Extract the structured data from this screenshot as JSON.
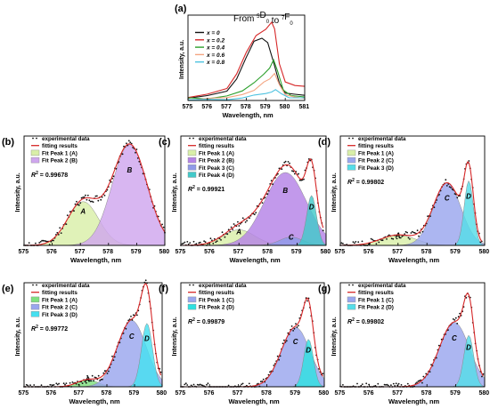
{
  "chart_data": [
    {
      "panel": "(a)",
      "type": "line",
      "title_main": "From ",
      "title_sup1": "5",
      "title_mid": "D",
      "title_sub1": "0",
      "title_to": " to ",
      "title_sup2": "7",
      "title_end": "F",
      "title_sub2": "0",
      "xlabel": "Wavelength, nm",
      "ylabel": "Intensity, a.u.",
      "xlim": [
        575,
        581
      ],
      "xticks": [
        "575",
        "576",
        "577",
        "578",
        "579",
        "580",
        "581"
      ],
      "legend": [
        {
          "name": "x = 0",
          "color": "#111111"
        },
        {
          "name": "x = 0.2",
          "color": "#d62728"
        },
        {
          "name": "x = 0.4",
          "color": "#2ca02c"
        },
        {
          "name": "x = 0.6",
          "color": "#f4a582"
        },
        {
          "name": "x = 0.8",
          "color": "#4fc3e0"
        }
      ],
      "series": [
        {
          "name": "x = 0",
          "x": [
            575,
            576,
            577,
            577.5,
            578,
            578.4,
            578.8,
            579.1,
            579.4,
            579.7,
            580,
            580.5,
            581
          ],
          "y": [
            0.03,
            0.06,
            0.13,
            0.28,
            0.55,
            0.75,
            0.8,
            0.72,
            0.48,
            0.22,
            0.1,
            0.07,
            0.06
          ]
        },
        {
          "name": "x = 0.2",
          "x": [
            575,
            576,
            577,
            577.5,
            578,
            578.5,
            579,
            579.3,
            579.45,
            579.7,
            580,
            580.5,
            581
          ],
          "y": [
            0.05,
            0.08,
            0.16,
            0.33,
            0.62,
            0.82,
            0.9,
            1.0,
            0.92,
            0.45,
            0.22,
            0.2,
            0.18
          ]
        },
        {
          "name": "x = 0.4",
          "x": [
            575,
            576,
            577,
            577.8,
            578.4,
            578.9,
            579.2,
            579.4,
            579.6,
            579.9,
            580.3,
            581
          ],
          "y": [
            0.02,
            0.03,
            0.06,
            0.12,
            0.22,
            0.34,
            0.42,
            0.5,
            0.38,
            0.14,
            0.06,
            0.05
          ]
        },
        {
          "name": "x = 0.6",
          "x": [
            575,
            576,
            577,
            577.8,
            578.4,
            578.9,
            579.2,
            579.45,
            579.7,
            580,
            580.5,
            581
          ],
          "y": [
            0.01,
            0.02,
            0.04,
            0.08,
            0.14,
            0.22,
            0.28,
            0.33,
            0.2,
            0.08,
            0.04,
            0.03
          ]
        },
        {
          "name": "x = 0.8",
          "x": [
            575,
            576,
            577,
            577.8,
            578.4,
            579,
            579.3,
            579.5,
            579.8,
            580.2,
            581
          ],
          "y": [
            0.0,
            0.01,
            0.02,
            0.04,
            0.07,
            0.1,
            0.12,
            0.14,
            0.08,
            0.03,
            0.02
          ]
        }
      ]
    },
    {
      "panel": "(b)",
      "type": "area",
      "xlim": [
        575,
        580
      ],
      "xticks": [
        "575",
        "576",
        "577",
        "578",
        "579",
        "580"
      ],
      "xlabel": "Wavelength, nm",
      "ylabel": "Intensity, a.u.",
      "r2_label": "R",
      "r2_exp": "2",
      "r2_value": " = 0.99678",
      "legend": [
        {
          "name": "experimental data",
          "kind": "dots",
          "color": "#111111"
        },
        {
          "name": "fitting results",
          "kind": "line",
          "color": "#d62728"
        },
        {
          "name": "Fit Peak 1 (A)",
          "kind": "fill",
          "color": "#d9efa8"
        },
        {
          "name": "Fit Peak 2 (B)",
          "kind": "fill",
          "color": "#cfa6ee"
        }
      ],
      "peaks": [
        {
          "label": "A",
          "center": 577.1,
          "sigma": 0.55,
          "amp": 0.42,
          "color": "#d9efa8"
        },
        {
          "label": "B",
          "center": 578.75,
          "sigma": 0.62,
          "amp": 0.97,
          "color": "#cfa6ee"
        }
      ],
      "fit_xmax": 580
    },
    {
      "panel": "(c)",
      "type": "area",
      "xlim": [
        575,
        580
      ],
      "xticks": [
        "575",
        "576",
        "577",
        "578",
        "579",
        "580"
      ],
      "xlabel": "Wavelength, nm",
      "ylabel": "Intensity, a.u.",
      "r2_label": "R",
      "r2_exp": "2",
      "r2_value": " = 0.99921",
      "legend": [
        {
          "name": "experimental data",
          "kind": "dots",
          "color": "#111111"
        },
        {
          "name": "fitting results",
          "kind": "line",
          "color": "#d62728"
        },
        {
          "name": "Fit Peak 1 (A)",
          "kind": "fill",
          "color": "#d9efa8"
        },
        {
          "name": "Fit Peak 2 (B)",
          "kind": "fill",
          "color": "#b583e6"
        },
        {
          "name": "Fit Peak 3 (C)",
          "kind": "fill",
          "color": "#8f9ae8"
        },
        {
          "name": "Fit Peak 4 (D)",
          "kind": "fill",
          "color": "#42c9c9"
        }
      ],
      "peaks": [
        {
          "label": "A",
          "center": 577.0,
          "sigma": 0.55,
          "amp": 0.15,
          "color": "#d9efa8"
        },
        {
          "label": "B",
          "center": 578.6,
          "sigma": 0.72,
          "amp": 0.7,
          "color": "#b583e6"
        },
        {
          "label": "C",
          "center": 578.8,
          "sigma": 0.4,
          "amp": 0.08,
          "color": "#8f9ae8"
        },
        {
          "label": "D",
          "center": 579.5,
          "sigma": 0.17,
          "amp": 0.48,
          "color": "#42c9c9"
        }
      ],
      "fit_xmax": 579.9
    },
    {
      "panel": "(d)",
      "type": "area",
      "xlim": [
        575,
        580
      ],
      "xticks": [
        "575",
        "576",
        "577",
        "578",
        "579",
        "580"
      ],
      "xlabel": "Wavelength, nm",
      "ylabel": "Intensity, a.u.",
      "r2_label": "R",
      "r2_exp": "2",
      "r2_value": " = 0.99802",
      "legend": [
        {
          "name": "experimental data",
          "kind": "dots",
          "color": "#111111"
        },
        {
          "name": "fitting results",
          "kind": "line",
          "color": "#d62728"
        },
        {
          "name": "Fit Peak 1 (A)",
          "kind": "fill",
          "color": "#d9efa8"
        },
        {
          "name": "Fit Peak 2 (C)",
          "kind": "fill",
          "color": "#9aa6ee"
        },
        {
          "name": "Fit Peak 3 (D)",
          "kind": "fill",
          "color": "#55dde8"
        }
      ],
      "peaks": [
        {
          "label": "A",
          "center": 577.0,
          "sigma": 0.6,
          "amp": 0.1,
          "color": "#d9efa8"
        },
        {
          "label": "C",
          "center": 578.7,
          "sigma": 0.48,
          "amp": 0.6,
          "color": "#9aa6ee"
        },
        {
          "label": "D",
          "center": 579.45,
          "sigma": 0.16,
          "amp": 0.62,
          "color": "#55dde8"
        }
      ],
      "fit_xmax": 579.9
    },
    {
      "panel": "(e)",
      "type": "area",
      "xlim": [
        575,
        580
      ],
      "xticks": [
        "575",
        "576",
        "577",
        "578",
        "579",
        "580"
      ],
      "xlabel": "Wavelength, nm",
      "ylabel": "Intensity, a.u.",
      "r2_label": "R",
      "r2_exp": "2",
      "r2_value": " = 0.99772",
      "legend": [
        {
          "name": "experimental data",
          "kind": "dots",
          "color": "#111111"
        },
        {
          "name": "fitting results",
          "kind": "line",
          "color": "#d62728"
        },
        {
          "name": "Fit Peak 1 (A)",
          "kind": "fill",
          "color": "#7fe07f"
        },
        {
          "name": "Fit Peak 2 (C)",
          "kind": "fill",
          "color": "#9aa6ee"
        },
        {
          "name": "Fit Peak 3 (D)",
          "kind": "fill",
          "color": "#45e0f0"
        }
      ],
      "peaks": [
        {
          "label": "A",
          "center": 577.3,
          "sigma": 0.38,
          "amp": 0.07,
          "color": "#7fe07f"
        },
        {
          "label": "C",
          "center": 578.9,
          "sigma": 0.52,
          "amp": 0.67,
          "color": "#9aa6ee"
        },
        {
          "label": "D",
          "center": 579.45,
          "sigma": 0.2,
          "amp": 0.64,
          "color": "#45e0f0"
        }
      ],
      "fit_xmax": 579.95
    },
    {
      "panel": "(f)",
      "type": "area",
      "xlim": [
        575,
        580
      ],
      "xticks": [
        "575",
        "576",
        "577",
        "578",
        "579",
        "580"
      ],
      "xlabel": "Wavelength, nm",
      "ylabel": "Intensity, a.u.",
      "r2_label": "R",
      "r2_exp": "2",
      "r2_value": " = 0.99879",
      "legend": [
        {
          "name": "experimental data",
          "kind": "dots",
          "color": "#111111"
        },
        {
          "name": "fitting results",
          "kind": "line",
          "color": "#d62728"
        },
        {
          "name": "Fit Peak 1 (C)",
          "kind": "fill",
          "color": "#9aa6ee"
        },
        {
          "name": "Fit Peak 2 (D)",
          "kind": "fill",
          "color": "#2ee0e0"
        }
      ],
      "peaks": [
        {
          "label": "C",
          "center": 579.0,
          "sigma": 0.5,
          "amp": 0.6,
          "color": "#9aa6ee"
        },
        {
          "label": "D",
          "center": 579.45,
          "sigma": 0.17,
          "amp": 0.48,
          "color": "#2ee0e0"
        }
      ],
      "fit_xmax": 579.95
    },
    {
      "panel": "(g)",
      "type": "area",
      "xlim": [
        575,
        580
      ],
      "xticks": [
        "575",
        "576",
        "577",
        "578",
        "579",
        "580"
      ],
      "xlabel": "Wavelength, nm",
      "ylabel": "Intensity, a.u.",
      "r2_label": "R",
      "r2_exp": "2",
      "r2_value": " = 0.99802",
      "legend": [
        {
          "name": "experimental data",
          "kind": "dots",
          "color": "#111111"
        },
        {
          "name": "fitting results",
          "kind": "line",
          "color": "#d62728"
        },
        {
          "name": "Fit Peak 1 (C)",
          "kind": "fill",
          "color": "#9aa6ee"
        },
        {
          "name": "Fit Peak 2 (D)",
          "kind": "fill",
          "color": "#55dde8"
        }
      ],
      "peaks": [
        {
          "label": "C",
          "center": 578.95,
          "sigma": 0.52,
          "amp": 0.65,
          "color": "#9aa6ee"
        },
        {
          "label": "D",
          "center": 579.45,
          "sigma": 0.17,
          "amp": 0.52,
          "color": "#55dde8"
        }
      ],
      "fit_xmax": 579.95
    }
  ]
}
